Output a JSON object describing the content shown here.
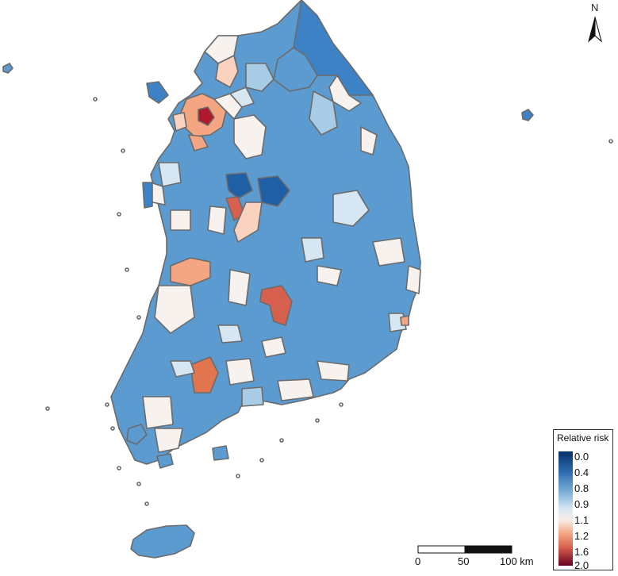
{
  "north_label": "N",
  "legend": {
    "title": "Relative risk",
    "ticks": [
      "0.0",
      "0.4",
      "0.8",
      "0.9",
      "1.1",
      "1.2",
      "1.6",
      "2.0"
    ]
  },
  "scale_bar": {
    "labels": [
      "0",
      "50",
      "100 km"
    ]
  },
  "colors": {
    "outline": "#6b6b6b",
    "rr_0_0": "#08306b",
    "rr_0_4": "#2c6db0",
    "rr_0_8": "#5b9bd0",
    "rr_0_9": "#d6e7f3",
    "rr_1_1": "#f7f2ee",
    "rr_1_2": "#f4a582",
    "rr_1_6": "#d6604d",
    "rr_2_0": "#67001f"
  }
}
